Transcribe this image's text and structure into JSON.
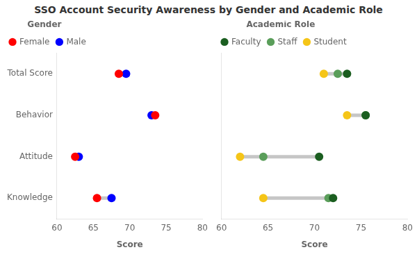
{
  "chart_data": [
    {
      "type": "dumbbell",
      "title": "SSO Account Security Awareness by Gender and Academic Role",
      "orientation": "horizontal",
      "categories": [
        "Total Score",
        "Behavior",
        "Attitude",
        "Knowledge"
      ],
      "legend_title": "Gender",
      "series": [
        {
          "name": "Female",
          "color": "#FF0000",
          "values": [
            68.5,
            73.5,
            62.5,
            65.5
          ]
        },
        {
          "name": "Male",
          "color": "#0000FF",
          "values": [
            69.5,
            73.0,
            63.0,
            67.5
          ]
        }
      ],
      "xlim": [
        60,
        80
      ],
      "xticks": [
        60,
        65,
        70,
        75,
        80
      ],
      "xlabel": "Score",
      "grid": false,
      "legend": "upper left"
    },
    {
      "type": "dumbbell",
      "orientation": "horizontal",
      "categories": [
        "Total Score",
        "Behavior",
        "Attitude",
        "Knowledge"
      ],
      "legend_title": "Academic Role",
      "series": [
        {
          "name": "Faculty",
          "color": "#1B5E20",
          "values": [
            73.5,
            75.5,
            70.5,
            72.0
          ]
        },
        {
          "name": "Staff",
          "color": "#5A9E5A",
          "values": [
            72.5,
            75.5,
            64.5,
            71.5
          ]
        },
        {
          "name": "Student",
          "color": "#F5C518",
          "values": [
            71.0,
            73.5,
            62.0,
            64.5
          ]
        }
      ],
      "xlim": [
        60,
        80
      ],
      "xticks": [
        60,
        65,
        70,
        75,
        80
      ],
      "xlabel": "Score",
      "grid": false,
      "legend": "upper left",
      "tick_labels": "x"
    }
  ]
}
